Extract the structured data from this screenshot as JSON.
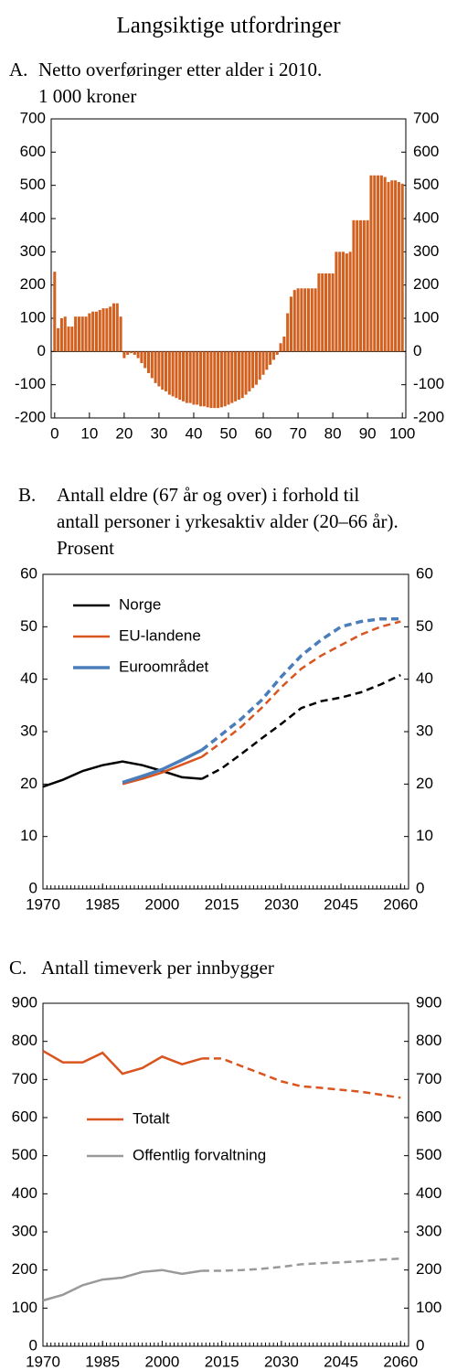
{
  "title": "Langsiktige utfordringer",
  "chart_data": [
    {
      "type": "bar",
      "panel": "A.",
      "title": [
        "Netto overføringer etter alder i 2010.",
        "1 000 kroner"
      ],
      "x": [
        0,
        1,
        2,
        3,
        4,
        5,
        6,
        7,
        8,
        9,
        10,
        11,
        12,
        13,
        14,
        15,
        16,
        17,
        18,
        19,
        20,
        21,
        22,
        23,
        24,
        25,
        26,
        27,
        28,
        29,
        30,
        31,
        32,
        33,
        34,
        35,
        36,
        37,
        38,
        39,
        40,
        41,
        42,
        43,
        44,
        45,
        46,
        47,
        48,
        49,
        50,
        51,
        52,
        53,
        54,
        55,
        56,
        57,
        58,
        59,
        60,
        61,
        62,
        63,
        64,
        65,
        66,
        67,
        68,
        69,
        70,
        71,
        72,
        73,
        74,
        75,
        76,
        77,
        78,
        79,
        80,
        81,
        82,
        83,
        84,
        85,
        86,
        87,
        88,
        89,
        90,
        91,
        92,
        93,
        94,
        95,
        96,
        97,
        98,
        99,
        100
      ],
      "values": [
        240,
        70,
        100,
        105,
        75,
        75,
        105,
        105,
        105,
        105,
        115,
        120,
        120,
        125,
        130,
        130,
        135,
        145,
        145,
        105,
        -20,
        -10,
        -5,
        -10,
        -20,
        -35,
        -50,
        -65,
        -80,
        -95,
        -105,
        -115,
        -120,
        -130,
        -135,
        -140,
        -145,
        -150,
        -155,
        -155,
        -160,
        -160,
        -165,
        -165,
        -168,
        -170,
        -170,
        -170,
        -168,
        -165,
        -160,
        -155,
        -150,
        -145,
        -140,
        -130,
        -120,
        -110,
        -100,
        -85,
        -70,
        -55,
        -40,
        -25,
        -10,
        25,
        45,
        115,
        165,
        185,
        190,
        190,
        190,
        190,
        190,
        190,
        235,
        235,
        235,
        235,
        235,
        300,
        300,
        300,
        295,
        300,
        395,
        395,
        395,
        395,
        395,
        530,
        530,
        530,
        530,
        525,
        510,
        515,
        515,
        510,
        505
      ],
      "color": "#d2601f",
      "xlim": [
        -1,
        101
      ],
      "xticks": [
        0,
        10,
        20,
        30,
        40,
        50,
        60,
        70,
        80,
        90,
        100
      ],
      "ylim": [
        -200,
        700
      ],
      "yticks": [
        -200,
        -100,
        0,
        100,
        200,
        300,
        400,
        500,
        600,
        700
      ]
    },
    {
      "type": "line",
      "panel": "B.",
      "title": [
        "Antall eldre (67 år og over) i forhold til",
        "antall personer i yrkesaktiv alder (20–66 år).",
        "Prosent"
      ],
      "x": [
        1970,
        1975,
        1980,
        1985,
        1990,
        1995,
        2000,
        2005,
        2010,
        2015,
        2020,
        2025,
        2030,
        2035,
        2040,
        2045,
        2050,
        2055,
        2060
      ],
      "series": [
        {
          "name": "Norge",
          "color": "#000000",
          "values": [
            19.5,
            20.8,
            22.5,
            23.6,
            24.3,
            23.6,
            22.5,
            21.3,
            21.0,
            23.0,
            25.8,
            28.7,
            31.5,
            34.5,
            35.8,
            36.5,
            37.5,
            39.0,
            40.8
          ]
        },
        {
          "name": "EU-landene",
          "color": "#d9541e",
          "values": [
            null,
            null,
            null,
            null,
            20.0,
            21.0,
            22.2,
            23.7,
            25.2,
            28.0,
            31.0,
            34.5,
            38.5,
            42.0,
            44.5,
            46.5,
            48.5,
            50.0,
            51.0
          ]
        },
        {
          "name": "Euroområdet",
          "color": "#4a7ebb",
          "values": [
            null,
            null,
            null,
            null,
            20.3,
            21.5,
            22.8,
            24.6,
            26.5,
            29.5,
            32.5,
            36.0,
            40.5,
            44.5,
            47.5,
            50.0,
            51.0,
            51.5,
            51.5
          ]
        }
      ],
      "projection_from": 2010,
      "legend": "upper left",
      "xlim": [
        1970,
        2062
      ],
      "xticks": [
        1970,
        1985,
        2000,
        2015,
        2030,
        2045,
        2060
      ],
      "ylim": [
        0,
        60
      ],
      "yticks": [
        0,
        10,
        20,
        30,
        40,
        50,
        60
      ]
    },
    {
      "type": "line",
      "panel": "C.",
      "title": [
        "Antall timeverk per innbygger"
      ],
      "x": [
        1970,
        1975,
        1980,
        1985,
        1990,
        1995,
        2000,
        2005,
        2010,
        2015,
        2020,
        2025,
        2030,
        2035,
        2040,
        2045,
        2050,
        2055,
        2060
      ],
      "series": [
        {
          "name": "Totalt",
          "color": "#d9541e",
          "values": [
            775,
            745,
            745,
            770,
            715,
            730,
            760,
            740,
            755,
            755,
            735,
            715,
            695,
            682,
            678,
            673,
            668,
            660,
            652
          ]
        },
        {
          "name": "Offentlig forvaltning",
          "color": "#999999",
          "values": [
            120,
            135,
            160,
            175,
            180,
            195,
            200,
            190,
            198,
            198,
            200,
            203,
            208,
            215,
            218,
            220,
            223,
            227,
            230
          ]
        }
      ],
      "projection_from": 2010,
      "legend": "center left",
      "xlim": [
        1970,
        2062
      ],
      "xticks": [
        1970,
        1985,
        2000,
        2015,
        2030,
        2045,
        2060
      ],
      "ylim": [
        0,
        900
      ],
      "yticks": [
        0,
        100,
        200,
        300,
        400,
        500,
        600,
        700,
        800,
        900
      ]
    }
  ]
}
